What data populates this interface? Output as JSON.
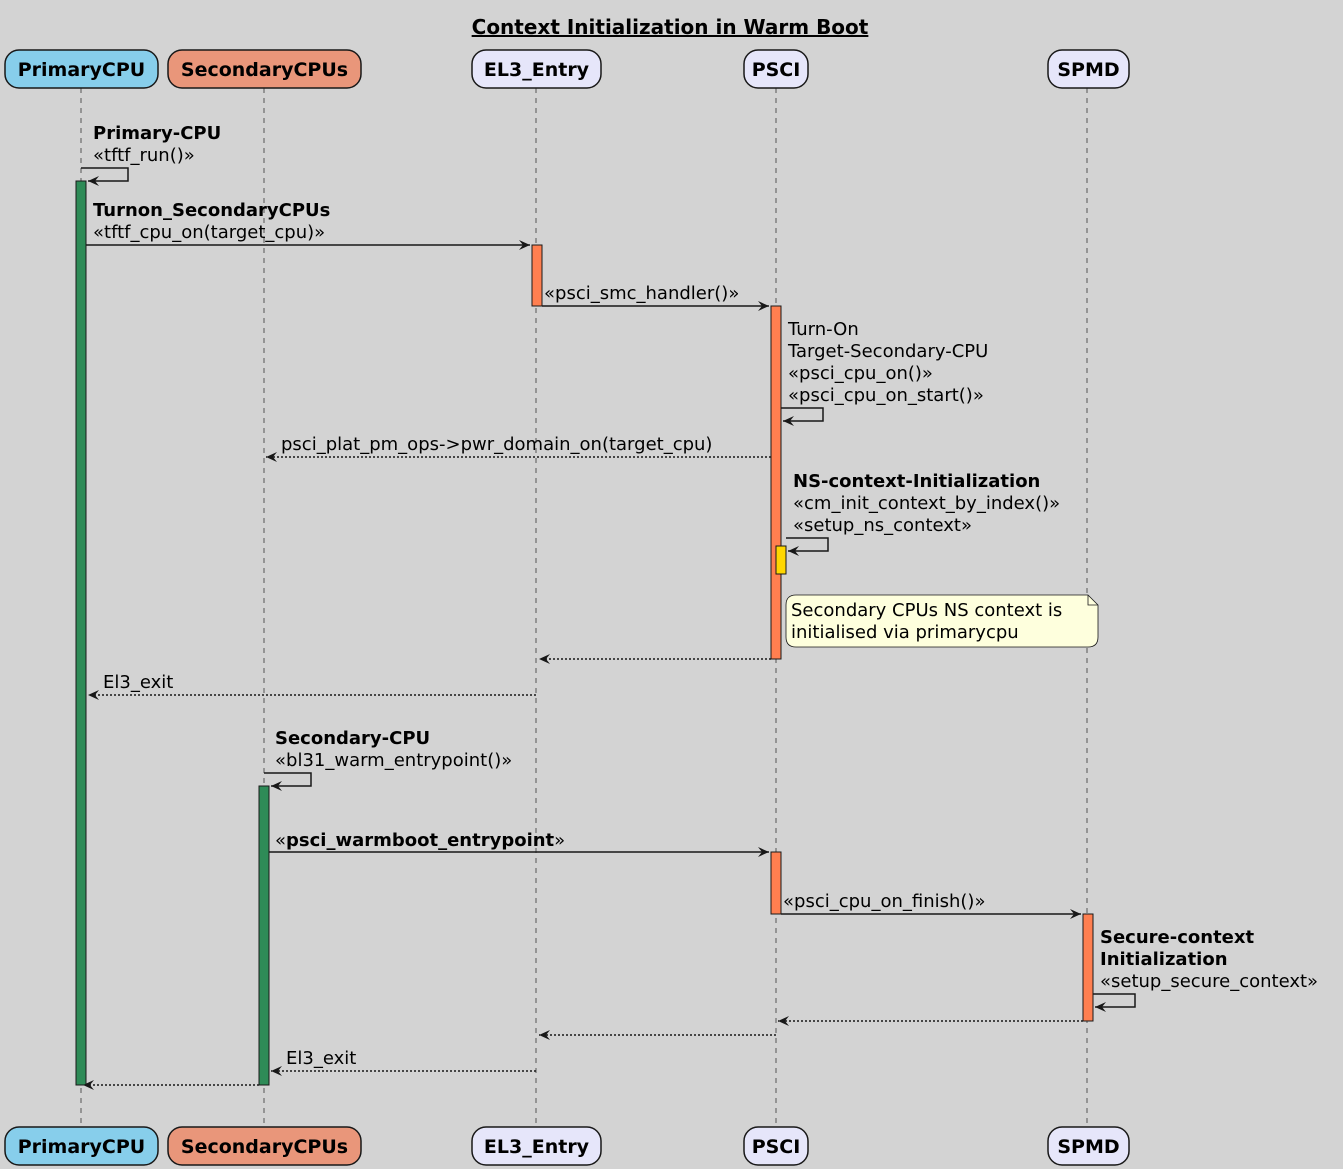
{
  "title": "Context Initialization in Warm Boot",
  "participants": [
    {
      "name": "PrimaryCPU",
      "color": "#87CEEB"
    },
    {
      "name": "SecondaryCPUs",
      "color": "#E9967A"
    },
    {
      "name": "EL3_Entry",
      "color": "#E6E6FA"
    },
    {
      "name": "PSCI",
      "color": "#E6E6FA"
    },
    {
      "name": "SPMD",
      "color": "#E6E6FA"
    }
  ],
  "activation_colors": {
    "green": "#2E8B57",
    "coral": "#FF7F50",
    "yellow": "#FFD700"
  },
  "messages": {
    "m1": [
      "Primary-CPU",
      "«tftf_run()»"
    ],
    "m2": [
      "Turnon_SecondaryCPUs",
      "«tftf_cpu_on(target_cpu)»"
    ],
    "m3": "«psci_smc_handler()»",
    "m4": [
      "Turn-On",
      "Target-Secondary-CPU",
      "«psci_cpu_on()»",
      "«psci_cpu_on_start()»"
    ],
    "m5": "psci_plat_pm_ops->pwr_domain_on(target_cpu)",
    "m6": [
      "NS-context-Initialization",
      "«cm_init_context_by_index()»",
      "«setup_ns_context»"
    ],
    "note": [
      "Secondary CPUs NS context is",
      "initialised via primarycpu"
    ],
    "m9": "El3_exit",
    "m10": [
      "Secondary-CPU",
      "«bl31_warm_entrypoint()»"
    ],
    "m11": {
      "open": "«",
      "bold": "psci_warmboot_entrypoint",
      "close": "»"
    },
    "m12": "«psci_cpu_on_finish()»",
    "m13": [
      "Secure-context",
      "Initialization",
      "«setup_secure_context»"
    ],
    "m16": "El3_exit"
  }
}
